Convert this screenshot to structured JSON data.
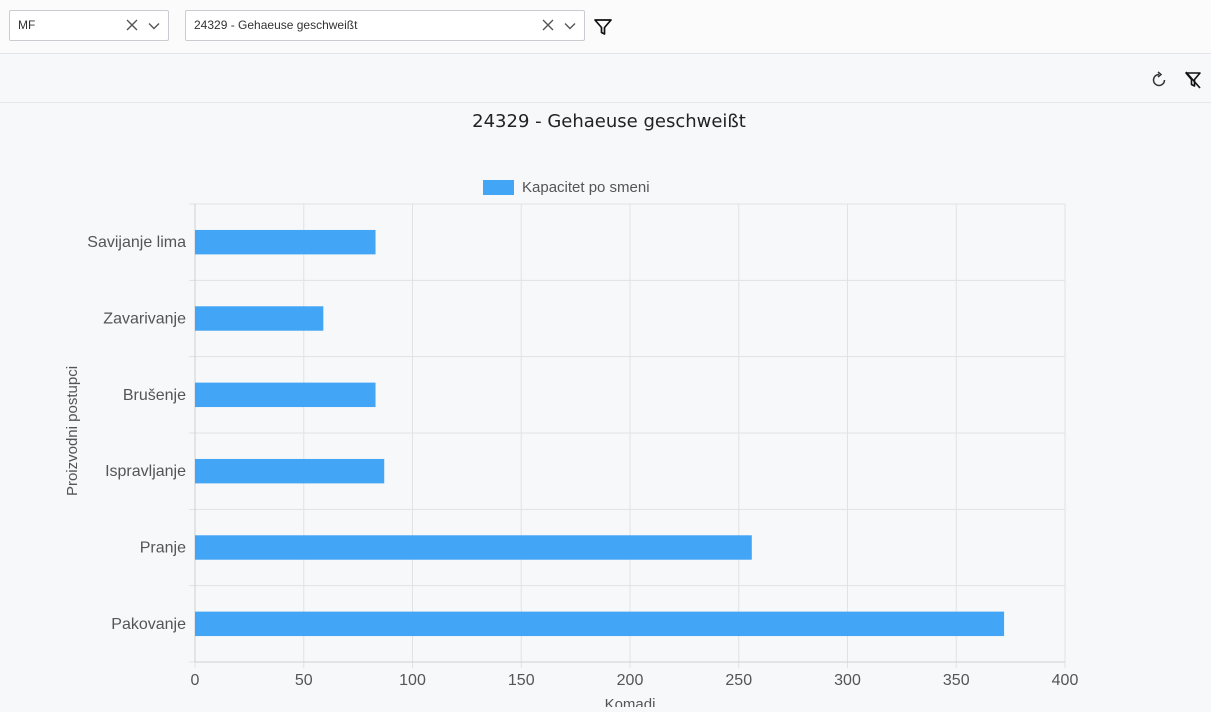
{
  "filters": {
    "plant": {
      "value": "MF"
    },
    "product": {
      "value": "24329 - Gehaeuse geschweißt"
    }
  },
  "icons": {
    "clear": "close-icon",
    "dropdown": "chevron-down-icon",
    "filter": "filter-icon",
    "refresh": "refresh-icon",
    "clear_filter": "filter-off-icon"
  },
  "chart_data": {
    "type": "bar",
    "orientation": "horizontal",
    "title": "24329 - Gehaeuse geschweißt",
    "categories": [
      "Savijanje lima",
      "Zavarivanje",
      "Brušenje",
      "Ispravljanje",
      "Pranje",
      "Pakovanje"
    ],
    "series": [
      {
        "name": "Kapacitet po smeni",
        "values": [
          83,
          59,
          83,
          87,
          256,
          372
        ],
        "color": "#42a5f5"
      }
    ],
    "xlabel": "Komadi",
    "ylabel": "Proizvodni postupci",
    "xlim": [
      0,
      400
    ],
    "xticks": [
      "0",
      "50",
      "100",
      "150",
      "200",
      "250",
      "300",
      "350",
      "400"
    ],
    "grid": true,
    "legend": "top-center"
  }
}
